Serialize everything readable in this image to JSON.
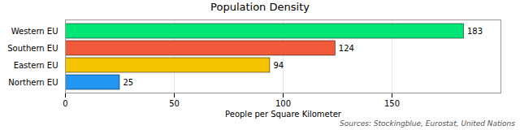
{
  "chart_data": {
    "type": "bar",
    "orientation": "horizontal",
    "title": "Population Density",
    "xlabel": "People per Square Kilometer",
    "caption": "Sources: Stockingblue, Eurostat, United Nations",
    "categories": [
      "Northern EU",
      "Eastern EU",
      "Southern EU",
      "Western EU"
    ],
    "values": [
      25,
      94,
      124,
      183
    ],
    "colors": [
      "#2196f3",
      "#f5c400",
      "#f05a3a",
      "#00e676"
    ],
    "xlim": [
      0,
      200
    ],
    "xticks": [
      0,
      50,
      100,
      150
    ],
    "grid": true,
    "data_labels": true
  }
}
